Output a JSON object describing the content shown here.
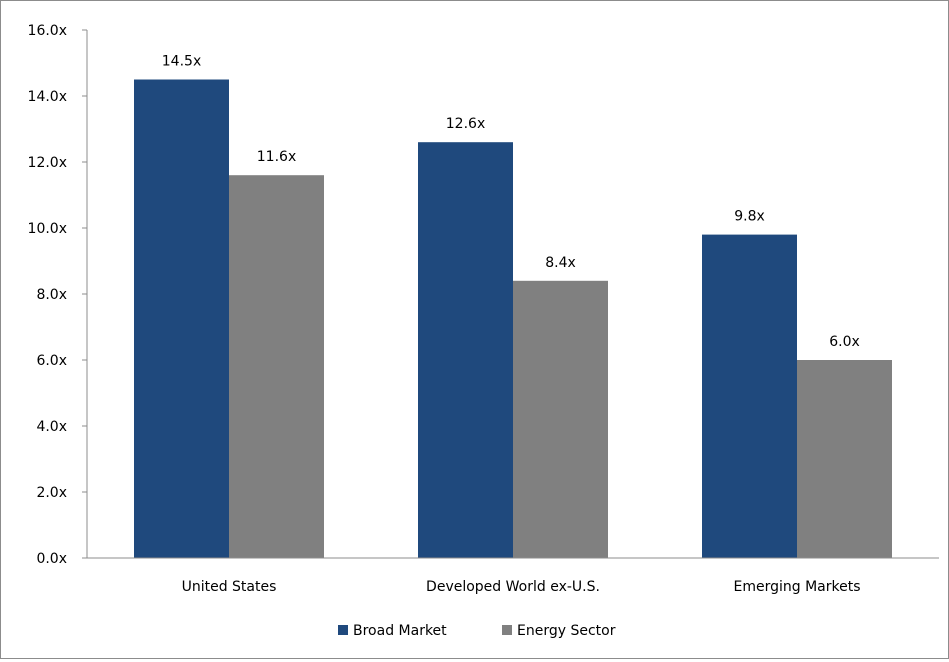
{
  "chart_data": {
    "type": "bar",
    "title": "",
    "xlabel": "",
    "ylabel": "",
    "categories": [
      "United States",
      "Developed World ex-U.S.",
      "Emerging Markets"
    ],
    "series": [
      {
        "name": "Broad Market",
        "color": "#1f497d",
        "values": [
          14.5,
          12.6,
          9.8
        ],
        "labels": [
          "14.5x",
          "12.6x",
          "9.8x"
        ]
      },
      {
        "name": "Energy Sector",
        "color": "#808080",
        "values": [
          11.6,
          8.4,
          6.0
        ],
        "labels": [
          "11.6x",
          "8.4x",
          "6.0x"
        ]
      }
    ],
    "ylim": [
      0,
      16
    ],
    "yticks": [
      0,
      2,
      4,
      6,
      8,
      10,
      12,
      14,
      16
    ],
    "ytick_labels": [
      "0.0x",
      "2.0x",
      "4.0x",
      "6.0x",
      "8.0x",
      "10.0x",
      "12.0x",
      "14.0x",
      "16.0x"
    ],
    "grid": false,
    "legend_position": "bottom"
  }
}
